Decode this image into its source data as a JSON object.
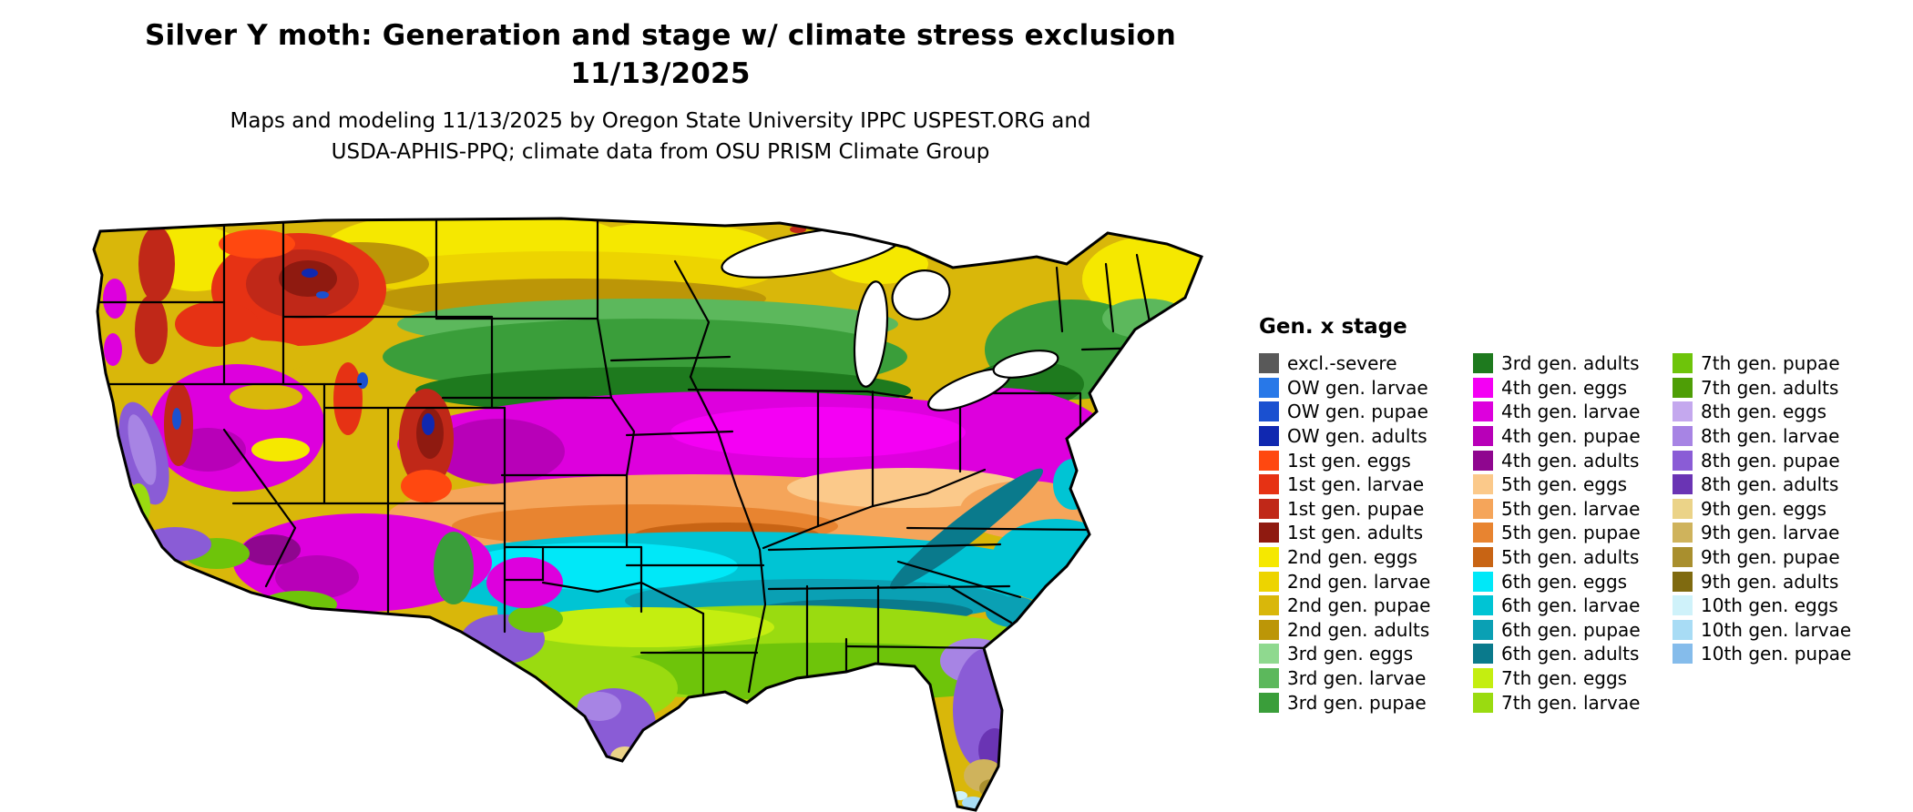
{
  "header": {
    "title_line1": "Silver Y moth: Generation and stage w/ climate stress exclusion",
    "title_line2": "11/13/2025",
    "credit_line1": "Maps and modeling 11/13/2025 by Oregon State University IPPC USPEST.ORG and",
    "credit_line2": "USDA-APHIS-PPQ; climate data from OSU PRISM Climate Group"
  },
  "legend": {
    "title": "Gen. x stage",
    "columns": [
      {
        "items": [
          {
            "id": "excl_severe",
            "label": "excl.-severe",
            "color": "#595959"
          },
          {
            "id": "ow_larvae",
            "label": "OW gen. larvae",
            "color": "#2878E8"
          },
          {
            "id": "ow_pupae",
            "label": "OW gen. pupae",
            "color": "#1A50D0"
          },
          {
            "id": "ow_adults",
            "label": "OW gen. adults",
            "color": "#1028B0"
          },
          {
            "id": "g1_eggs",
            "label": "1st gen. eggs",
            "color": "#FF4810"
          },
          {
            "id": "g1_larvae",
            "label": "1st gen. larvae",
            "color": "#E63214"
          },
          {
            "id": "g1_pupae",
            "label": "1st gen. pupae",
            "color": "#C02818"
          },
          {
            "id": "g1_adults",
            "label": "1st gen. adults",
            "color": "#8F1A10"
          },
          {
            "id": "g2_eggs",
            "label": "2nd gen. eggs",
            "color": "#F5E800"
          },
          {
            "id": "g2_larvae",
            "label": "2nd gen. larvae",
            "color": "#EDD400"
          },
          {
            "id": "g2_pupae",
            "label": "2nd gen. pupae",
            "color": "#D9B70A"
          },
          {
            "id": "g2_adults",
            "label": "2nd gen. adults",
            "color": "#BC9607"
          },
          {
            "id": "g3_eggs",
            "label": "3rd gen. eggs",
            "color": "#8FD98F"
          },
          {
            "id": "g3_larvae",
            "label": "3rd gen. larvae",
            "color": "#5CB85C"
          },
          {
            "id": "g3_pupae",
            "label": "3rd gen. pupae",
            "color": "#3A9E3A"
          }
        ]
      },
      {
        "items": [
          {
            "id": "g3_adults",
            "label": "3rd gen. adults",
            "color": "#1E7A1E"
          },
          {
            "id": "g4_eggs",
            "label": "4th gen. eggs",
            "color": "#F400F4"
          },
          {
            "id": "g4_larvae",
            "label": "4th gen. larvae",
            "color": "#DD00DD"
          },
          {
            "id": "g4_pupae",
            "label": "4th gen. pupae",
            "color": "#B800B8"
          },
          {
            "id": "g4_adults",
            "label": "4th gen. adults",
            "color": "#8F068F"
          },
          {
            "id": "g5_eggs",
            "label": "5th gen. eggs",
            "color": "#FBC98A"
          },
          {
            "id": "g5_larvae",
            "label": "5th gen. larvae",
            "color": "#F5A55A"
          },
          {
            "id": "g5_pupae",
            "label": "5th gen. pupae",
            "color": "#E88430"
          },
          {
            "id": "g5_adults",
            "label": "5th gen. adults",
            "color": "#C86414"
          },
          {
            "id": "g6_eggs",
            "label": "6th gen. eggs",
            "color": "#00E8F8"
          },
          {
            "id": "g6_larvae",
            "label": "6th gen. larvae",
            "color": "#00C4D4"
          },
          {
            "id": "g6_pupae",
            "label": "6th gen. pupae",
            "color": "#0AA0B4"
          },
          {
            "id": "g6_adults",
            "label": "6th gen. adults",
            "color": "#0A7A8C"
          },
          {
            "id": "g7_eggs",
            "label": "7th gen. eggs",
            "color": "#C4EE10"
          },
          {
            "id": "g7_larvae",
            "label": "7th gen. larvae",
            "color": "#9ADB10"
          }
        ]
      },
      {
        "items": [
          {
            "id": "g7_pupae",
            "label": "7th gen. pupae",
            "color": "#6EC40A"
          },
          {
            "id": "g7_adults",
            "label": "7th gen. adults",
            "color": "#4E9E06"
          },
          {
            "id": "g8_eggs",
            "label": "8th gen. eggs",
            "color": "#C4A8EE"
          },
          {
            "id": "g8_larvae",
            "label": "8th gen. larvae",
            "color": "#A784E4"
          },
          {
            "id": "g8_pupae",
            "label": "8th gen. pupae",
            "color": "#8A5CD6"
          },
          {
            "id": "g8_adults",
            "label": "8th gen. adults",
            "color": "#6A34B4"
          },
          {
            "id": "g9_eggs",
            "label": "9th gen. eggs",
            "color": "#EBD388"
          },
          {
            "id": "g9_larvae",
            "label": "9th gen. larvae",
            "color": "#CFB35C"
          },
          {
            "id": "g9_pupae",
            "label": "9th gen. pupae",
            "color": "#A98F2E"
          },
          {
            "id": "g9_adults",
            "label": "9th gen. adults",
            "color": "#7F6A10"
          },
          {
            "id": "g10_eggs",
            "label": "10th gen. eggs",
            "color": "#CFF2FA"
          },
          {
            "id": "g10_larvae",
            "label": "10th gen. larvae",
            "color": "#A8DCF5"
          },
          {
            "id": "g10_pupae",
            "label": "10th gen. pupae",
            "color": "#85BCEB"
          }
        ]
      }
    ]
  }
}
